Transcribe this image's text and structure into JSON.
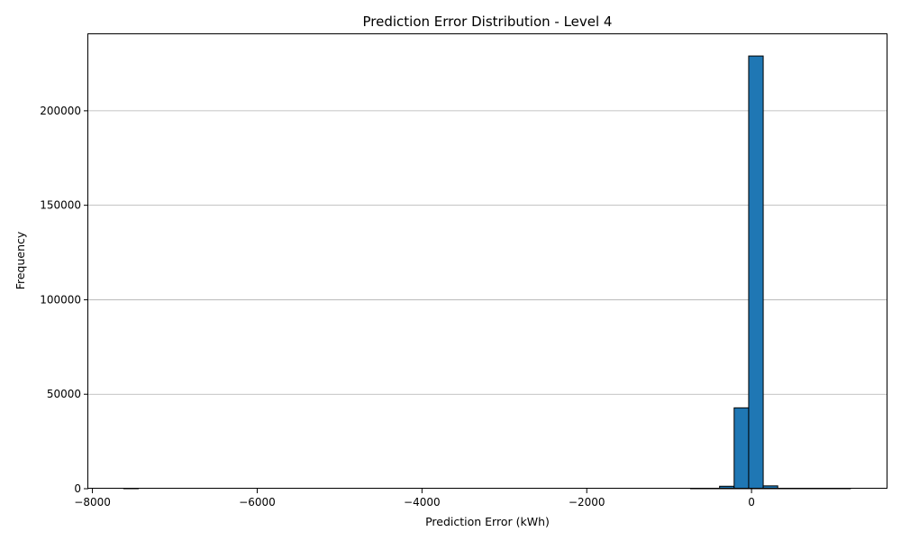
{
  "chart_data": {
    "type": "bar",
    "title": "Prediction Error Distribution - Level 4",
    "xlabel": "Prediction Error (kWh)",
    "ylabel": "Frequency",
    "xlim": [
      -8050,
      1650
    ],
    "ylim": [
      0,
      240500
    ],
    "x_ticks": [
      -8000,
      -6000,
      -4000,
      -2000,
      0
    ],
    "x_tick_labels": [
      "−8000",
      "−6000",
      "−4000",
      "−2000",
      "0"
    ],
    "y_ticks": [
      0,
      50000,
      100000,
      150000,
      200000
    ],
    "y_tick_labels": [
      "0",
      "50000",
      "100000",
      "150000",
      "200000"
    ],
    "grid": "y",
    "bar_color": "#1f77b4",
    "edge_color": "#000000",
    "bin_edges": [
      -7620,
      -7443.6,
      -7267.2,
      -7090.8,
      -6914.4,
      -6738,
      -6561.6,
      -6385.2,
      -6208.8,
      -6032.4,
      -5856,
      -5679.6,
      -5503.2,
      -5326.8,
      -5150.4,
      -4974,
      -4797.6,
      -4621.2,
      -4444.8,
      -4268.4,
      -4092,
      -3915.6,
      -3739.2,
      -3562.8,
      -3386.4,
      -3210,
      -3033.6,
      -2857.2,
      -2680.8,
      -2504.4,
      -2328,
      -2151.6,
      -1975.2,
      -1798.8,
      -1622.4,
      -1446,
      -1269.6,
      -1093.2,
      -916.8,
      -740.4,
      -564,
      -387.6,
      -211.2,
      -34.8,
      141.6,
      318,
      494.4,
      670.8,
      847.2,
      1023.6,
      1200
    ],
    "values": [
      3,
      0,
      0,
      0,
      0,
      0,
      0,
      0,
      0,
      0,
      0,
      0,
      0,
      0,
      0,
      0,
      0,
      0,
      0,
      0,
      0,
      0,
      0,
      0,
      0,
      0,
      0,
      0,
      0,
      0,
      0,
      0,
      0,
      0,
      0,
      0,
      0,
      0,
      0,
      2,
      120,
      1300,
      42800,
      229000,
      1500,
      150,
      25,
      5,
      2,
      1
    ]
  }
}
